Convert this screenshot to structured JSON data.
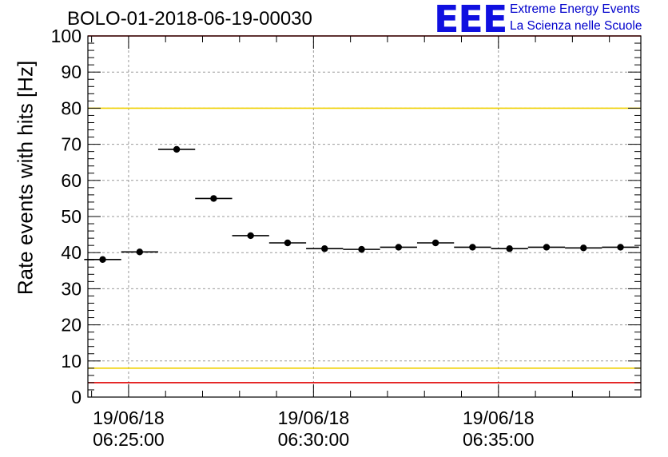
{
  "title": "BOLO-01-2018-06-19-00030",
  "logo": {
    "mark": "EEE",
    "line1": "Extreme Energy Events",
    "line2": "La Scienza nelle Scuole"
  },
  "chart_data": {
    "type": "scatter",
    "title": "BOLO-01-2018-06-19-00030",
    "xlabel": "",
    "ylabel": "Rate events with hits [Hz]",
    "ylim": [
      0,
      100
    ],
    "y_ticks": [
      0,
      10,
      20,
      30,
      40,
      50,
      60,
      70,
      80,
      90,
      100
    ],
    "x_unit": "minutes after 19/06/18 06:25:00",
    "xlim": [
      -1.1,
      13.85
    ],
    "x_ticks": [
      {
        "value": 0,
        "date": "19/06/18",
        "time": "06:25:00"
      },
      {
        "value": 5,
        "date": "19/06/18",
        "time": "06:30:00"
      },
      {
        "value": 10,
        "date": "19/06/18",
        "time": "06:35:00"
      }
    ],
    "grid": true,
    "reference_lines": [
      {
        "y": 80,
        "color": "#f0d000"
      },
      {
        "y": 8,
        "color": "#f0d000"
      },
      {
        "y": 100,
        "color": "#e00000"
      },
      {
        "y": 4,
        "color": "#e00000"
      }
    ],
    "series": [
      {
        "color": "#000000",
        "points": [
          {
            "x": -0.7,
            "y": 38.1,
            "xerr": 0.5,
            "yerr": 0.6
          },
          {
            "x": 0.3,
            "y": 40.2,
            "xerr": 0.5,
            "yerr": 0.6
          },
          {
            "x": 1.3,
            "y": 68.6,
            "xerr": 0.5,
            "yerr": 0.8
          },
          {
            "x": 2.3,
            "y": 55.0,
            "xerr": 0.5,
            "yerr": 0.7
          },
          {
            "x": 3.3,
            "y": 44.7,
            "xerr": 0.5,
            "yerr": 0.6
          },
          {
            "x": 4.3,
            "y": 42.7,
            "xerr": 0.5,
            "yerr": 0.6
          },
          {
            "x": 5.3,
            "y": 41.1,
            "xerr": 0.5,
            "yerr": 0.6
          },
          {
            "x": 6.3,
            "y": 40.9,
            "xerr": 0.5,
            "yerr": 0.6
          },
          {
            "x": 7.3,
            "y": 41.5,
            "xerr": 0.5,
            "yerr": 0.6
          },
          {
            "x": 8.3,
            "y": 42.7,
            "xerr": 0.5,
            "yerr": 0.6
          },
          {
            "x": 9.3,
            "y": 41.5,
            "xerr": 0.5,
            "yerr": 0.6
          },
          {
            "x": 10.3,
            "y": 41.1,
            "xerr": 0.5,
            "yerr": 0.6
          },
          {
            "x": 11.3,
            "y": 41.5,
            "xerr": 0.5,
            "yerr": 0.6
          },
          {
            "x": 12.3,
            "y": 41.3,
            "xerr": 0.5,
            "yerr": 0.6
          },
          {
            "x": 13.3,
            "y": 41.5,
            "xerr": 0.5,
            "yerr": 0.6
          }
        ]
      }
    ]
  }
}
